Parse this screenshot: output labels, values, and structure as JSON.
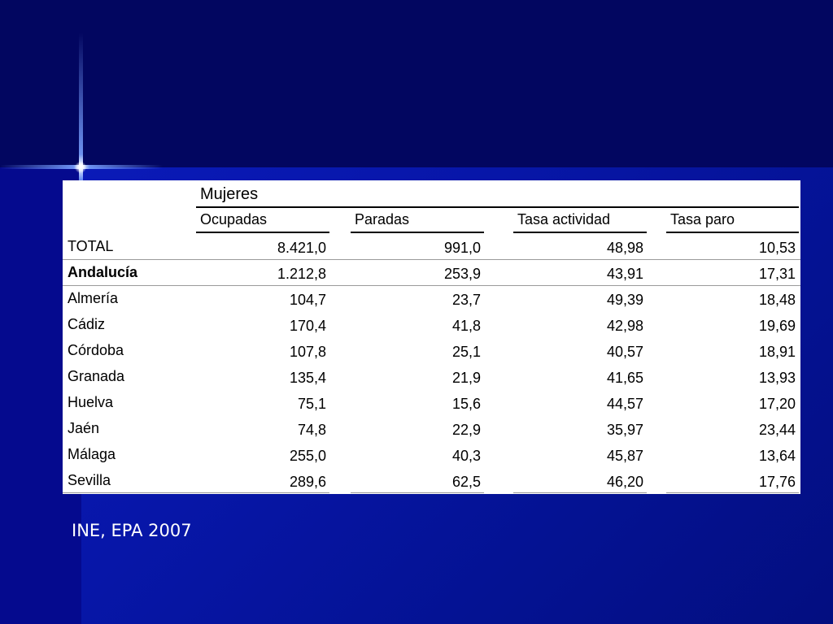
{
  "table": {
    "group_header": "Mujeres",
    "columns": [
      "Ocupadas",
      "Paradas",
      "Tasa actividad",
      "Tasa paro"
    ],
    "rows": [
      {
        "label": "TOTAL",
        "values": [
          "8.421,0",
          "991,0",
          "48,98",
          "10,53"
        ],
        "bold": false
      },
      {
        "label": "Andalucía",
        "values": [
          "1.212,8",
          "253,9",
          "43,91",
          "17,31"
        ],
        "bold": true
      },
      {
        "label": "Almería",
        "values": [
          "104,7",
          "23,7",
          "49,39",
          "18,48"
        ],
        "bold": false
      },
      {
        "label": "Cádiz",
        "values": [
          "170,4",
          "41,8",
          "42,98",
          "19,69"
        ],
        "bold": false
      },
      {
        "label": "Córdoba",
        "values": [
          "107,8",
          "25,1",
          "40,57",
          "18,91"
        ],
        "bold": false
      },
      {
        "label": "Granada",
        "values": [
          "135,4",
          "21,9",
          "41,65",
          "13,93"
        ],
        "bold": false
      },
      {
        "label": "Huelva",
        "values": [
          "75,1",
          "15,6",
          "44,57",
          "17,20"
        ],
        "bold": false
      },
      {
        "label": "Jaén",
        "values": [
          "74,8",
          "22,9",
          "35,97",
          "23,44"
        ],
        "bold": false
      },
      {
        "label": "Málaga",
        "values": [
          "255,0",
          "40,3",
          "45,87",
          "13,64"
        ],
        "bold": false
      },
      {
        "label": "Sevilla",
        "values": [
          "289,6",
          "62,5",
          "46,20",
          "17,76"
        ],
        "bold": false
      }
    ]
  },
  "source": "INE, EPA 2007"
}
